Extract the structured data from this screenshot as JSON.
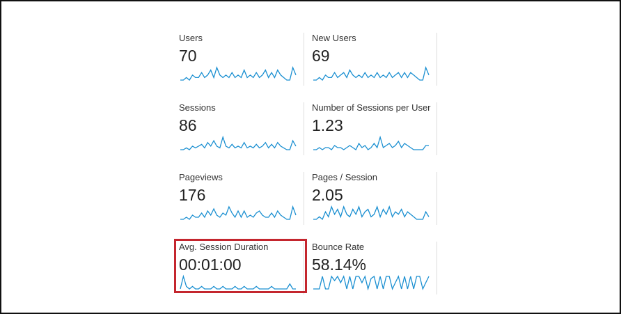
{
  "metrics": [
    {
      "label": "Users",
      "value": "70",
      "sparkline": [
        1,
        1,
        2,
        1,
        3,
        2,
        2,
        4,
        2,
        3,
        5,
        2,
        6,
        3,
        2,
        3,
        2,
        4,
        2,
        3,
        2,
        5,
        2,
        3,
        2,
        4,
        2,
        3,
        5,
        2,
        4,
        2,
        5,
        3,
        2,
        1,
        1,
        6,
        3
      ]
    },
    {
      "label": "New Users",
      "value": "69",
      "sparkline": [
        1,
        1,
        2,
        1,
        3,
        2,
        2,
        4,
        2,
        3,
        4,
        2,
        5,
        3,
        2,
        3,
        2,
        4,
        2,
        3,
        2,
        4,
        2,
        3,
        2,
        4,
        2,
        3,
        4,
        2,
        4,
        2,
        4,
        3,
        2,
        1,
        1,
        6,
        3
      ]
    },
    {
      "label": "Sessions",
      "value": "86",
      "sparkline": [
        1,
        1,
        2,
        1,
        3,
        2,
        3,
        4,
        2,
        5,
        3,
        6,
        3,
        2,
        8,
        3,
        2,
        4,
        2,
        3,
        2,
        5,
        2,
        3,
        2,
        4,
        2,
        3,
        5,
        2,
        4,
        2,
        5,
        3,
        2,
        1,
        1,
        6,
        3
      ]
    },
    {
      "label": "Number of Sessions per User",
      "value": "1.23",
      "sparkline": [
        1,
        1,
        2,
        1,
        2,
        2,
        1,
        3,
        2,
        2,
        1,
        2,
        3,
        2,
        1,
        4,
        2,
        3,
        1,
        2,
        4,
        2,
        7,
        2,
        3,
        4,
        2,
        3,
        5,
        2,
        4,
        3,
        2,
        1,
        1,
        1,
        1,
        3,
        3
      ]
    },
    {
      "label": "Pageviews",
      "value": "176",
      "sparkline": [
        1,
        1,
        2,
        1,
        3,
        2,
        2,
        4,
        2,
        5,
        3,
        6,
        3,
        2,
        4,
        3,
        7,
        4,
        2,
        5,
        2,
        5,
        2,
        3,
        2,
        4,
        5,
        3,
        2,
        2,
        4,
        2,
        5,
        3,
        2,
        1,
        1,
        7,
        3
      ]
    },
    {
      "label": "Pages / Session",
      "value": "2.05",
      "sparkline": [
        1,
        1,
        2,
        1,
        4,
        2,
        6,
        3,
        5,
        2,
        6,
        3,
        2,
        5,
        3,
        6,
        2,
        4,
        5,
        2,
        3,
        6,
        2,
        5,
        3,
        6,
        2,
        4,
        3,
        5,
        2,
        4,
        3,
        2,
        1,
        1,
        1,
        4,
        2
      ]
    },
    {
      "label": "Avg. Session Duration",
      "value": "00:01:00",
      "sparkline": [
        0,
        5,
        1,
        0,
        1,
        0,
        0,
        1,
        0,
        0,
        0,
        1,
        0,
        0,
        1,
        0,
        0,
        0,
        1,
        0,
        0,
        1,
        0,
        0,
        0,
        1,
        0,
        0,
        0,
        0,
        1,
        0,
        0,
        0,
        0,
        0,
        2,
        0,
        0
      ]
    },
    {
      "label": "Bounce Rate",
      "value": "58.14%",
      "sparkline": [
        0,
        0,
        0,
        6,
        0,
        0,
        6,
        4,
        6,
        3,
        6,
        0,
        6,
        0,
        6,
        6,
        3,
        6,
        0,
        5,
        6,
        0,
        6,
        0,
        6,
        6,
        0,
        3,
        6,
        0,
        6,
        0,
        6,
        0,
        6,
        6,
        0,
        3,
        6
      ]
    }
  ]
}
